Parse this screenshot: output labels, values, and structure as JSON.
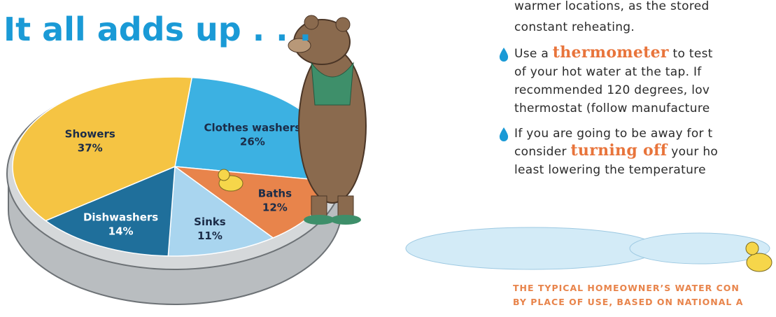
{
  "chart_data": {
    "type": "pie",
    "title": "It all adds up . . .",
    "categories": [
      "Clothes washers",
      "Baths",
      "Sinks",
      "Dishwashers",
      "Showers"
    ],
    "values": [
      26,
      12,
      11,
      14,
      37
    ],
    "value_labels": [
      "26%",
      "12%",
      "11%",
      "14%",
      "37%"
    ],
    "colors": [
      "#3cb1e2",
      "#e8844b",
      "#a9d5ef",
      "#1f6f9b",
      "#f5c443"
    ]
  },
  "tips": {
    "intro_lines": [
      "warmer locations, as the stored",
      "constant reheating."
    ],
    "bullets": [
      {
        "lines": [
          [
            "Use a ",
            "thermometer",
            " to test"
          ],
          [
            "of your hot water at the tap. If"
          ],
          [
            "recommended 120 degrees, lov"
          ],
          [
            "thermostat (follow manufacture"
          ]
        ]
      },
      {
        "lines": [
          [
            "If you are going to be away for t"
          ],
          [
            "consider ",
            "turning off",
            " your ho"
          ],
          [
            "least lowering the temperature"
          ]
        ]
      }
    ]
  },
  "caption": [
    "THE TYPICAL HOMEOWNER’S WATER CON",
    "BY PLACE OF USE, BASED ON NATIONAL A"
  ]
}
